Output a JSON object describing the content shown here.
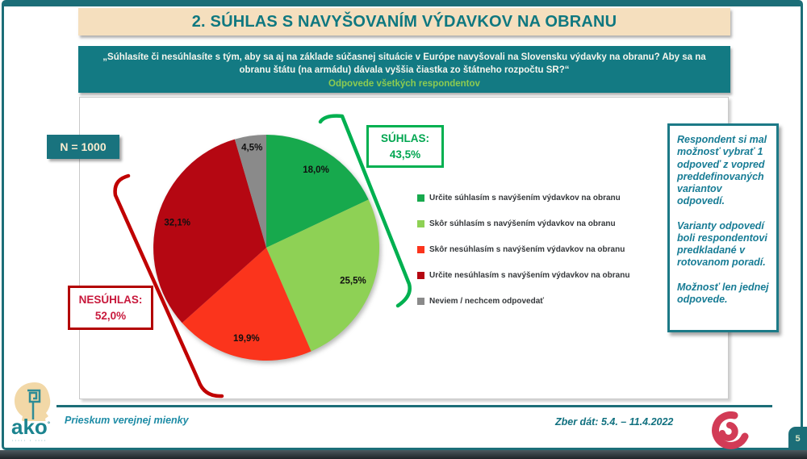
{
  "page": {
    "number": "5"
  },
  "theme": {
    "frame_teal": "#1C6E78",
    "question_teal": "#137A83",
    "title_beige": "#F5DFBE",
    "agree_green": "#00B050",
    "disagree_red": "#C00000",
    "footer_text_teal": "#1987A3"
  },
  "header": {
    "title": "2. SÚHLAS S NAVYŠOVANÍM VÝDAVKOV NA OBRANU"
  },
  "question": {
    "text": "„Súhlasíte či nesúhlasíte s tým, aby sa aj na základe súčasnej situácie v Európe navyšovali na Slovensku výdavky na obranu? Aby sa na obranu štátu (na armádu) dávala vyššia čiastka zo štátneho rozpočtu SR?“",
    "subtitle": "Odpovede všetkých respondentov"
  },
  "sample": {
    "label": "N = 1000"
  },
  "chart_data": {
    "type": "pie",
    "title": "",
    "start_angle_deg": 0,
    "direction": "clockwise",
    "slices": [
      {
        "label": "Určite súhlasím s navýšením výdavkov na obranu",
        "value": 18.0,
        "display": "18,0%",
        "color": "#17A94D"
      },
      {
        "label": "Skôr súhlasím s navýšením výdavkov na obranu",
        "value": 25.5,
        "display": "25,5%",
        "color": "#8ED155"
      },
      {
        "label": "Skôr nesúhlasím s navýšením výdavkov na obranu",
        "value": 19.9,
        "display": "19,9%",
        "color": "#FB341C"
      },
      {
        "label": "Určite nesúhlasím s navýšením výdavkov na obranu",
        "value": 32.1,
        "display": "32,1%",
        "color": "#B50712"
      },
      {
        "label": "Neviem / nechcem odpovedať",
        "value": 4.5,
        "display": "4,5%",
        "color": "#8A8A8A"
      }
    ],
    "groups": [
      {
        "name": "SÚHLAS:",
        "value_display": "43,5%",
        "color": "#00B050"
      },
      {
        "name": "NESÚHLAS:",
        "value_display": "52,0%",
        "color": "#C00000"
      }
    ],
    "legend_position": "right"
  },
  "note_box": {
    "paragraphs": [
      "Respondent si mal možnosť vybrať 1 odpoveď z vopred preddefinovaných variantov odpovedí.",
      "Varianty odpovedí boli respondentovi predkladané v rotovanom poradí.",
      "Možnosť len jednej odpovede."
    ]
  },
  "footer": {
    "left": "Prieskum verejnej mienky",
    "right": "Zber dát: 5.4. – 11.4.2022"
  },
  "logo": {
    "word": "ako",
    "mark": "°",
    "tagline": "····· · ····"
  }
}
